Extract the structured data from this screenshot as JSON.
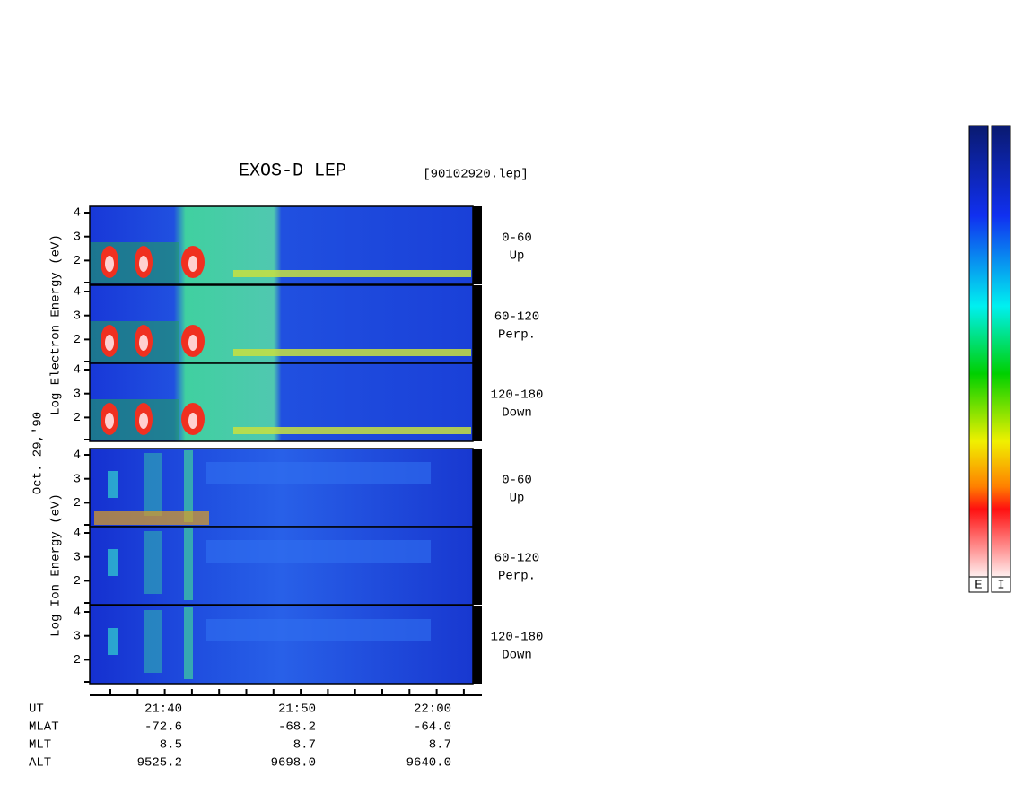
{
  "header": {
    "title": "EXOS-D LEP",
    "file": "[90102920.lep]"
  },
  "date": "Oct. 29,'90",
  "electron": {
    "axis_label": "Log Electron Energy (eV)",
    "panels": [
      {
        "label": "0-60",
        "sublabel": "Up",
        "ticks": [
          "4",
          "3",
          "2"
        ]
      },
      {
        "label": "60-120",
        "sublabel": "Perp.",
        "ticks": [
          "4",
          "3",
          "2"
        ]
      },
      {
        "label": "120-180",
        "sublabel": "Down",
        "ticks": [
          "4",
          "3",
          "2"
        ]
      }
    ]
  },
  "ion": {
    "axis_label": "Log Ion Energy (eV)",
    "panels": [
      {
        "label": "0-60",
        "sublabel": "Up",
        "ticks": [
          "4",
          "3",
          "2"
        ]
      },
      {
        "label": "60-120",
        "sublabel": "Perp.",
        "ticks": [
          "4",
          "3",
          "2"
        ]
      },
      {
        "label": "120-180",
        "sublabel": "Down",
        "ticks": [
          "4",
          "3",
          "2"
        ]
      }
    ]
  },
  "time_axis": {
    "name": "UT",
    "ticks": [
      "21:40",
      "21:50",
      "22:00"
    ]
  },
  "orbit": {
    "rows": [
      {
        "name": "MLAT",
        "values": [
          "-72.6",
          "-68.2",
          "-64.0"
        ]
      },
      {
        "name": "MLT",
        "values": [
          "8.5",
          "8.7",
          "8.7"
        ]
      },
      {
        "name": "ALT",
        "values": [
          "9525.2",
          "9698.0",
          "9640.0"
        ]
      }
    ]
  },
  "colorbars": [
    "E",
    "I"
  ]
}
